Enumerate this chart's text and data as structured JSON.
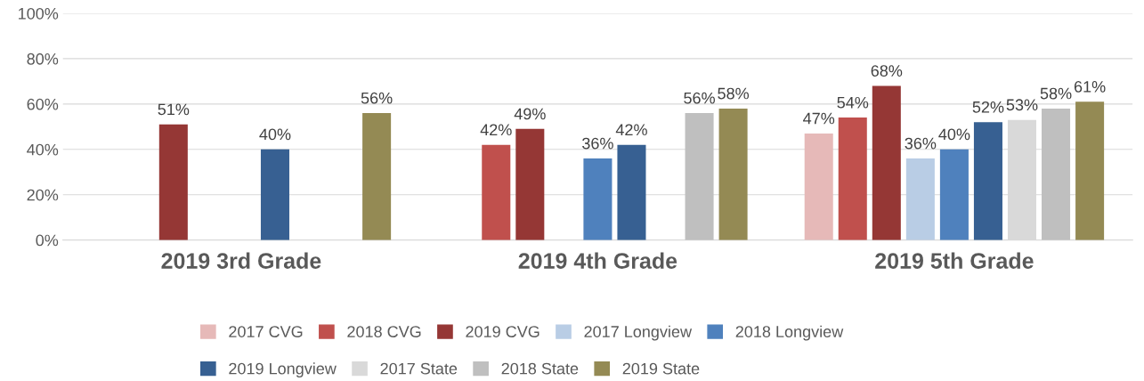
{
  "chart_data": {
    "type": "bar",
    "categories": [
      "2019 3rd Grade",
      "2019 4th Grade",
      "2019 5th Grade"
    ],
    "series": [
      {
        "name": "2017 CVG",
        "color": "#e6b9b8",
        "values": [
          null,
          null,
          47
        ],
        "value_labels": [
          null,
          null,
          "47%"
        ]
      },
      {
        "name": "2018 CVG",
        "color": "#c0504d",
        "values": [
          null,
          42,
          54
        ],
        "value_labels": [
          null,
          "42%",
          "54%"
        ]
      },
      {
        "name": "2019 CVG",
        "color": "#953735",
        "values": [
          51,
          49,
          68
        ],
        "value_labels": [
          "51%",
          "49%",
          "68%"
        ]
      },
      {
        "name": "2017 Longview",
        "color": "#b9cde5",
        "values": [
          null,
          null,
          36
        ],
        "value_labels": [
          null,
          null,
          "36%"
        ]
      },
      {
        "name": "2018 Longview",
        "color": "#4f81bd",
        "values": [
          null,
          36,
          40
        ],
        "value_labels": [
          null,
          "36%",
          "40%"
        ]
      },
      {
        "name": "2019 Longview",
        "color": "#376092",
        "values": [
          40,
          42,
          52
        ],
        "value_labels": [
          "40%",
          "42%",
          "52%"
        ]
      },
      {
        "name": "2017 State",
        "color": "#d9d9d9",
        "values": [
          null,
          null,
          53
        ],
        "value_labels": [
          null,
          null,
          "53%"
        ]
      },
      {
        "name": "2018 State",
        "color": "#bfbfbf",
        "values": [
          null,
          56,
          58
        ],
        "value_labels": [
          null,
          "56%",
          "58%"
        ]
      },
      {
        "name": "2019 State",
        "color": "#948a54",
        "values": [
          56,
          58,
          61
        ],
        "value_labels": [
          "56%",
          "58%",
          "61%"
        ]
      }
    ],
    "ylim": [
      0,
      100
    ],
    "yticks": [
      {
        "value": 0,
        "label": "0%"
      },
      {
        "value": 20,
        "label": "20%"
      },
      {
        "value": 40,
        "label": "40%"
      },
      {
        "value": 60,
        "label": "60%"
      },
      {
        "value": 80,
        "label": "80%"
      },
      {
        "value": 100,
        "label": "100%"
      }
    ],
    "grid": "y",
    "legend": "bottom"
  }
}
